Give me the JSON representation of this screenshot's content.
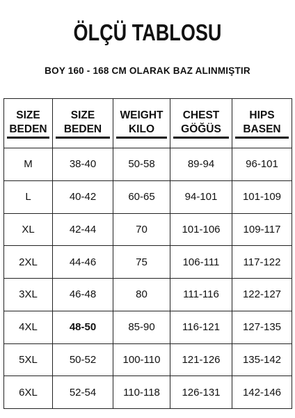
{
  "title": "ÖLÇÜ TABLOSU",
  "subtitle": "BOY 160 - 168 CM OLARAK BAZ ALINMIŞTIR",
  "table": {
    "headers": [
      {
        "line1": "SIZE",
        "line2": "BEDEN"
      },
      {
        "line1": "SIZE",
        "line2": "BEDEN"
      },
      {
        "line1": "WEIGHT",
        "line2": "KILO"
      },
      {
        "line1": "CHEST",
        "line2": "GÖĞÜS"
      },
      {
        "line1": "HIPS",
        "line2": "BASEN"
      }
    ],
    "rows": [
      [
        "M",
        "38-40",
        "50-58",
        "89-94",
        "96-101"
      ],
      [
        "L",
        "40-42",
        "60-65",
        "94-101",
        "101-109"
      ],
      [
        "XL",
        "42-44",
        "70",
        "101-106",
        "109-117"
      ],
      [
        "2XL",
        "44-46",
        "75",
        "106-111",
        "117-122"
      ],
      [
        "3XL",
        "46-48",
        "80",
        "111-116",
        "122-127"
      ],
      [
        "4XL",
        "48-50",
        "85-90",
        "116-121",
        "127-135"
      ],
      [
        "5XL",
        "50-52",
        "100-110",
        "121-126",
        "135-142"
      ],
      [
        "6XL",
        "52-54",
        "110-118",
        "126-131",
        "142-146"
      ]
    ]
  }
}
